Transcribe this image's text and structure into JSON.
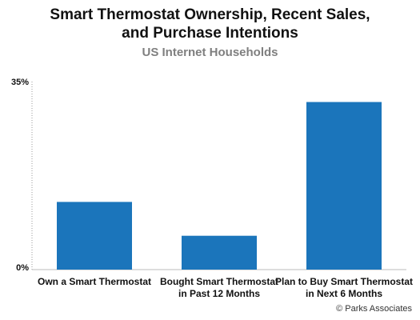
{
  "title_line1": "Smart Thermostat Ownership, Recent Sales,",
  "title_line2": "and Purchase Intentions",
  "subtitle": "US Internet Households",
  "source": "© Parks Associates",
  "colors": {
    "bar": "#1b75bb",
    "axis": "#999999",
    "title": "#111111",
    "subtitle": "#7f7f7f"
  },
  "chart_data": {
    "type": "bar",
    "title": "Smart Thermostat Ownership, Recent Sales, and Purchase Intentions",
    "subtitle": "US Internet Households",
    "categories": [
      [
        "Own a Smart Thermostat"
      ],
      [
        "Bought Smart Thermostat",
        "in Past 12 Months"
      ],
      [
        "Plan to Buy Smart Thermostat",
        "in Next 6 Months"
      ]
    ],
    "values": [
      12.6,
      6.3,
      31.2
    ],
    "ylim": [
      0,
      35
    ],
    "yticks": [
      "0%",
      "35%"
    ],
    "xlabel": "",
    "ylabel": "",
    "grid": false,
    "legend": "none"
  }
}
